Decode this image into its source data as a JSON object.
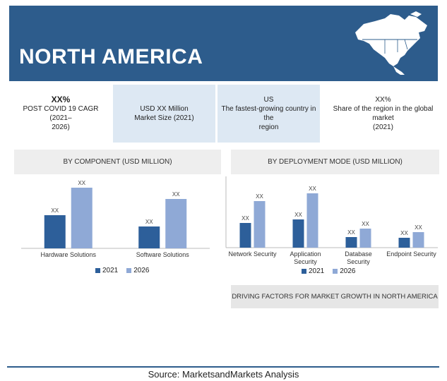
{
  "banner": {
    "title": "NORTH AMERICA"
  },
  "stats": [
    {
      "big": "XX%",
      "text": "POST COVID 19 CAGR (2021–2026)"
    },
    {
      "big": "",
      "text": "USD XX Million Market Size (2021)"
    },
    {
      "big": "",
      "text": "US The fastest-growing country in the region"
    },
    {
      "big": "",
      "text": "XX% Share of the region in the global market (2021)"
    }
  ],
  "colors": {
    "series_2021": "#2d5f9a",
    "series_2026": "#8fa9d6",
    "banner": "#2d5c8c"
  },
  "chart_data": [
    {
      "type": "bar",
      "title": "BY COMPONENT (USD MILLION)",
      "categories": [
        "Hardware Solutions",
        "Software Solutions"
      ],
      "series": [
        {
          "name": "2021",
          "values": [
            47,
            31
          ],
          "labels": [
            "XX",
            "XX"
          ]
        },
        {
          "name": "2026",
          "values": [
            86,
            70
          ],
          "labels": [
            "XX",
            "XX"
          ]
        }
      ]
    },
    {
      "type": "bar",
      "title": "BY DEPLOYMENT MODE (USD MILLION)",
      "categories": [
        "Network Security",
        "Application Security",
        "Database Security",
        "Endpoint Security"
      ],
      "series": [
        {
          "name": "2021",
          "values": [
            35,
            40,
            15,
            14
          ],
          "labels": [
            "XX",
            "XX",
            "XX",
            "XX"
          ]
        },
        {
          "name": "2026",
          "values": [
            66,
            77,
            27,
            22
          ],
          "labels": [
            "XX",
            "XX",
            "XX",
            "XX"
          ]
        }
      ]
    }
  ],
  "driving_factors": "DRIVING FACTORS FOR MARKET GROWTH IN NORTH AMERICA",
  "source": "Source: MarketsandMarkets Analysis"
}
